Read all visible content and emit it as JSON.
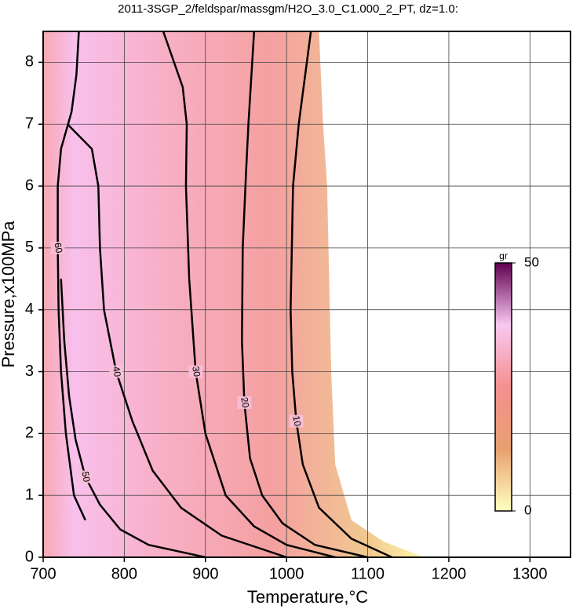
{
  "chart_data": {
    "type": "contour",
    "title": "2011-3SGP_2/feldspar/massgm/H2O_3.0_C1.000_2_PT, dz=1.0:",
    "x_label": "Temperature,°C",
    "y_label": "Pressure,x100MPa",
    "xlim": [
      700,
      1350
    ],
    "ylim": [
      0,
      8.5
    ],
    "xticks": [
      700,
      800,
      900,
      1000,
      1100,
      1200,
      1300
    ],
    "yticks": [
      0,
      1,
      2,
      3,
      4,
      5,
      6,
      7,
      8
    ],
    "grid": true,
    "field": {
      "x": [
        700,
        1040,
        1045,
        1050,
        1055,
        1060,
        1080,
        1120,
        1150,
        1170,
        700
      ],
      "y": [
        8.5,
        8.5,
        7,
        6,
        3,
        1.5,
        0.6,
        0.25,
        0.1,
        0,
        0
      ]
    },
    "contours": [
      {
        "level": 10,
        "x": [
          1030,
          1015,
          1008,
          1005,
          1007,
          1012,
          1020,
          1040,
          1080,
          1130
        ],
        "y": [
          8.5,
          7,
          6,
          4,
          3,
          2.2,
          1.5,
          0.8,
          0.3,
          0
        ]
      },
      {
        "level": 20,
        "x": [
          960,
          953,
          950,
          946,
          945,
          948,
          955,
          970,
          995,
          1035,
          1100
        ],
        "y": [
          8.5,
          7,
          6.2,
          5,
          3.5,
          2.5,
          1.6,
          1,
          0.55,
          0.2,
          0
        ]
      },
      {
        "level": 30,
        "x": [
          848,
          872,
          877,
          876,
          880,
          888,
          900,
          925,
          960,
          1000,
          1060
        ],
        "y": [
          8.5,
          7.6,
          7,
          6,
          4.5,
          3,
          2,
          1,
          0.5,
          0.2,
          0
        ]
      },
      {
        "level": 40,
        "x": [
          730,
          760,
          768,
          770,
          775,
          790,
          810,
          835,
          870,
          920,
          1000
        ],
        "y": [
          7,
          6.6,
          6,
          5,
          4,
          3,
          2.2,
          1.4,
          0.8,
          0.35,
          0
        ]
      },
      {
        "level": 50,
        "x": [
          722,
          726,
          732,
          740,
          752,
          770,
          795,
          830,
          900
        ],
        "y": [
          4.5,
          3.5,
          2.6,
          1.9,
          1.3,
          0.85,
          0.45,
          0.2,
          0
        ]
      },
      {
        "level": 60,
        "x": [
          744,
          741,
          735,
          722,
          718,
          718,
          719,
          722,
          728,
          738,
          752
        ],
        "y": [
          8.5,
          7.8,
          7.2,
          6.6,
          6,
          5,
          4,
          3,
          2,
          1,
          0.6
        ]
      }
    ],
    "colorbar": {
      "label": "gr",
      "clim": [
        0,
        50
      ],
      "ticks": [
        0,
        50
      ],
      "colors": [
        "#ffffc0",
        "#e8a070",
        "#f49090",
        "#f8c8f0",
        "#600050"
      ]
    }
  }
}
